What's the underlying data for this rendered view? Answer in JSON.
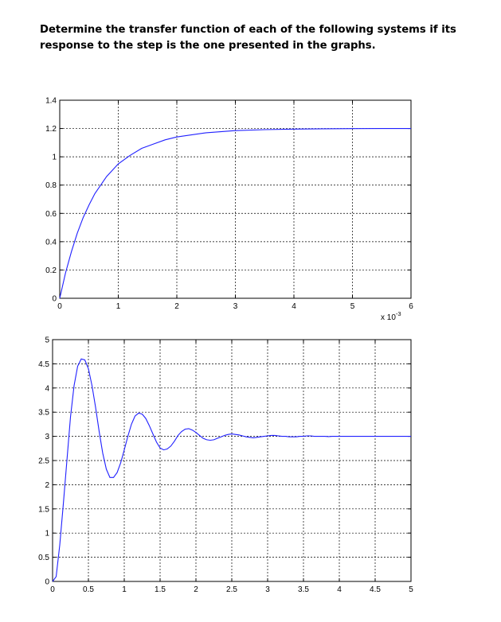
{
  "prompt_text": "Determine the transfer function of each of the following systems if its response to the step is the one presented in the graphs.",
  "chart_data": [
    {
      "type": "line",
      "title": "",
      "xlabel": "",
      "ylabel": "",
      "x_multiplier": "x 10",
      "x_multiplier_exp": "-3",
      "xlim": [
        0,
        6
      ],
      "ylim": [
        0,
        1.4
      ],
      "x_ticks": [
        "0",
        "1",
        "2",
        "3",
        "4",
        "5",
        "6"
      ],
      "y_ticks": [
        "0",
        "0.2",
        "0.4",
        "0.6",
        "0.8",
        "1",
        "1.2",
        "1.4"
      ],
      "grid": true,
      "line_color": "#2020ff",
      "series": [
        {
          "x": [
            0,
            0.1,
            0.2,
            0.3,
            0.4,
            0.5,
            0.6,
            0.8,
            1.0,
            1.2,
            1.4,
            1.6,
            1.8,
            2.0,
            2.5,
            3.0,
            3.5,
            4.0,
            4.5,
            5.0,
            5.5,
            6.0
          ],
          "y": [
            0,
            0.18,
            0.33,
            0.46,
            0.57,
            0.66,
            0.74,
            0.86,
            0.95,
            1.01,
            1.06,
            1.09,
            1.12,
            1.14,
            1.17,
            1.185,
            1.192,
            1.196,
            1.198,
            1.199,
            1.2,
            1.2
          ]
        }
      ]
    },
    {
      "type": "line",
      "title": "",
      "xlabel": "",
      "ylabel": "",
      "xlim": [
        0,
        5
      ],
      "ylim": [
        0,
        5
      ],
      "x_ticks": [
        "0",
        "0.5",
        "1",
        "1.5",
        "2",
        "2.5",
        "3",
        "3.5",
        "4",
        "4.5",
        "5"
      ],
      "y_ticks": [
        "0",
        "0.5",
        "1",
        "1.5",
        "2",
        "2.5",
        "3",
        "3.5",
        "4",
        "4.5",
        "5"
      ],
      "grid": true,
      "line_color": "#2020ff",
      "series": [
        {
          "x": [
            0,
            0.05,
            0.1,
            0.15,
            0.2,
            0.25,
            0.3,
            0.35,
            0.4,
            0.45,
            0.5,
            0.55,
            0.6,
            0.65,
            0.7,
            0.75,
            0.8,
            0.85,
            0.9,
            0.95,
            1.0,
            1.05,
            1.1,
            1.15,
            1.2,
            1.25,
            1.3,
            1.35,
            1.4,
            1.45,
            1.5,
            1.55,
            1.6,
            1.65,
            1.7,
            1.75,
            1.8,
            1.85,
            1.9,
            1.95,
            2.0,
            2.05,
            2.1,
            2.15,
            2.2,
            2.25,
            2.3,
            2.35,
            2.4,
            2.45,
            2.5,
            2.55,
            2.6,
            2.65,
            2.7,
            2.75,
            2.8,
            2.85,
            2.9,
            2.95,
            3.0,
            3.05,
            3.1,
            3.15,
            3.2,
            3.25,
            3.3,
            3.35,
            3.4,
            3.45,
            3.5,
            3.55,
            3.6,
            3.65,
            3.7,
            3.75,
            3.8,
            3.85,
            3.9,
            3.95,
            4.0,
            4.05,
            4.1,
            4.15,
            4.2,
            4.25,
            4.3,
            4.35,
            4.4,
            4.45,
            4.5,
            4.55,
            4.6,
            4.65,
            4.7,
            4.75,
            4.8,
            4.85,
            4.9,
            4.95,
            5.0
          ],
          "y": [
            0,
            0.1,
            0.75,
            1.6,
            2.5,
            3.4,
            4.05,
            4.45,
            4.6,
            4.58,
            4.4,
            4.05,
            3.6,
            3.1,
            2.65,
            2.32,
            2.15,
            2.15,
            2.25,
            2.45,
            2.72,
            3.0,
            3.25,
            3.42,
            3.48,
            3.46,
            3.37,
            3.22,
            3.05,
            2.88,
            2.76,
            2.72,
            2.74,
            2.8,
            2.9,
            3.02,
            3.1,
            3.15,
            3.16,
            3.13,
            3.08,
            3.02,
            2.96,
            2.93,
            2.92,
            2.93,
            2.96,
            2.99,
            3.02,
            3.04,
            3.05,
            3.04,
            3.03,
            3.01,
            2.99,
            2.98,
            2.97,
            2.98,
            2.99,
            3.0,
            3.01,
            3.02,
            3.02,
            3.01,
            3.0,
            3.0,
            2.99,
            2.99,
            2.99,
            3.0,
            3.0,
            3.01,
            3.01,
            3.0,
            3.0,
            3.0,
            3.0,
            2.995,
            3.0,
            3.0,
            3.0,
            3.0,
            3.0,
            3.0,
            3.0,
            3.0,
            3.0,
            3.0,
            3.0,
            3.0,
            3.0,
            3.0,
            3.0,
            3.0,
            3.0,
            3.0,
            3.0,
            3.0,
            3.0,
            3.0,
            3.0
          ]
        }
      ]
    }
  ]
}
